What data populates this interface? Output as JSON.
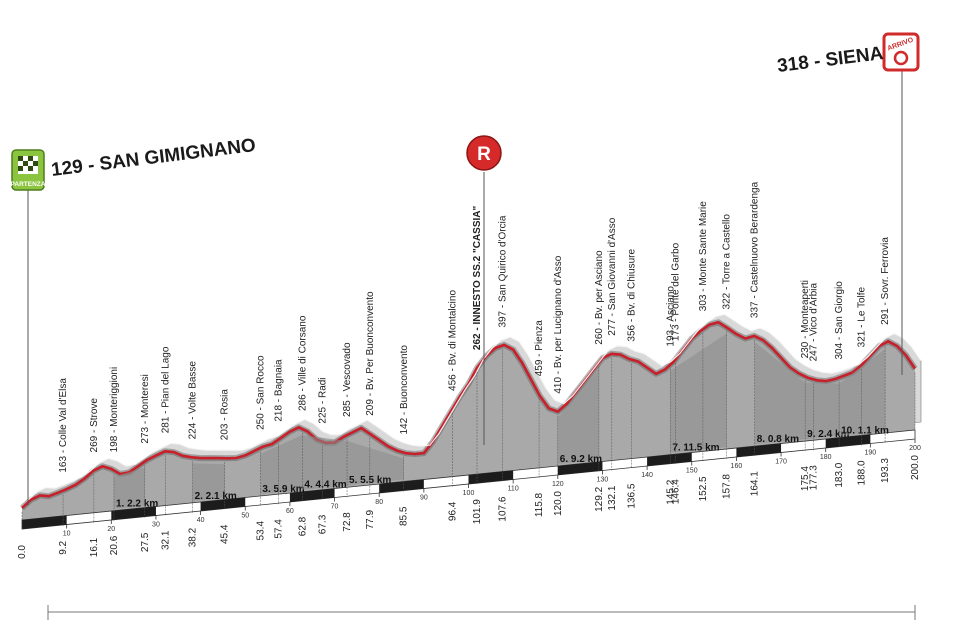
{
  "chart_data": {
    "type": "area",
    "title": "",
    "xlabel": "",
    "ylabel": "",
    "xlim": [
      0,
      200
    ],
    "start": {
      "label": "129 - SAN GIMIGNANO",
      "badge": "PARTENZA"
    },
    "finish": {
      "label": "318 - SIENA",
      "badge": "ARRIVO"
    },
    "refuel_badge": "R",
    "axis_ticks": [
      10,
      20,
      30,
      40,
      50,
      60,
      70,
      80,
      90,
      100,
      110,
      120,
      130,
      140,
      150,
      160,
      170,
      180,
      190,
      200
    ],
    "km_labels": [
      "0.0",
      "9.2",
      "16.1",
      "20.6",
      "27.5",
      "32.1",
      "38.2",
      "45.4",
      "53.4",
      "57.4",
      "62.8",
      "67.3",
      "72.8",
      "77.9",
      "85.5",
      "96.4",
      "101.9",
      "107.6",
      "115.8",
      "120.0",
      "129.2",
      "132.1",
      "136.5",
      "145.2",
      "146.4",
      "152.5",
      "157.8",
      "164.1",
      "175.4",
      "177.3",
      "183.0",
      "188.0",
      "193.3",
      "200.0"
    ],
    "waypoints": [
      {
        "label": "163 - Colle Val d'Elsa",
        "km": 9.2
      },
      {
        "label": "269 - Strove",
        "km": 16.1
      },
      {
        "label": "198 - Monteriggioni",
        "km": 20.6
      },
      {
        "label": "273 - Monteresi",
        "km": 27.5
      },
      {
        "label": "281 - Pian del Lago",
        "km": 32.1
      },
      {
        "label": "224 - Volte Basse",
        "km": 38.2
      },
      {
        "label": "203 - Rosia",
        "km": 45.4
      },
      {
        "label": "250 - San Rocco",
        "km": 53.4
      },
      {
        "label": "218 - Bagnaia",
        "km": 57.4
      },
      {
        "label": "286 - Ville di Corsano",
        "km": 62.8
      },
      {
        "label": "225 - Radi",
        "km": 67.3
      },
      {
        "label": "285 - Vescovado",
        "km": 72.8
      },
      {
        "label": "209 - Bv. Per Buonconvento",
        "km": 77.9
      },
      {
        "label": "142 - Buonconvento",
        "km": 85.5
      },
      {
        "label": "456 - Bv. di Montalcino",
        "km": 96.4
      },
      {
        "label": "262 - INNESTO SS.2 \"CASSIA\"",
        "km": 101.9,
        "bold": true
      },
      {
        "label": "397 - San Quirico d'Orcia",
        "km": 107.6
      },
      {
        "label": "459 - Pienza",
        "km": 115.8
      },
      {
        "label": "410 - Bv. per Lucignano d'Asso",
        "km": 120.0
      },
      {
        "label": "260 - Bv. per Asciano",
        "km": 129.2
      },
      {
        "label": "277 - San Giovanni d'Asso",
        "km": 132.1
      },
      {
        "label": "356 - Bv. di Chiusure",
        "km": 136.5
      },
      {
        "label": "193 - Asciano",
        "km": 145.2
      },
      {
        "label": "173 - Ponte del Garbo",
        "km": 146.4
      },
      {
        "label": "303 - Monte Sante Marie",
        "km": 152.5
      },
      {
        "label": "322 - Torre a Castello",
        "km": 157.8
      },
      {
        "label": "337 - Castelnuovo Berardenga",
        "km": 164.1
      },
      {
        "label": "230 - Monteaperti",
        "km": 175.4
      },
      {
        "label": "247 - Vico d'Arbia",
        "km": 177.3
      },
      {
        "label": "304 - San Giorgio",
        "km": 183.0
      },
      {
        "label": "321 - Le Tolfe",
        "km": 188.0
      },
      {
        "label": "291 - Sovr. Ferrovia",
        "km": 193.3
      }
    ],
    "sectors": [
      {
        "label": "1. 2.2 km",
        "start": 20.6,
        "end": 27.5
      },
      {
        "label": "2. 2.1 km",
        "start": 38.2,
        "end": 45.4
      },
      {
        "label": "3. 5.9 km",
        "start": 53.4,
        "end": 62.8
      },
      {
        "label": "4. 4.4 km",
        "start": 62.8,
        "end": 72.8
      },
      {
        "label": "5. 5.5 km",
        "start": 72.8,
        "end": 85.5
      },
      {
        "label": "6. 9.2 km",
        "start": 120.0,
        "end": 129.2
      },
      {
        "label": "7. 11.5 km",
        "start": 145.2,
        "end": 157.8
      },
      {
        "label": "8. 0.8 km",
        "start": 164.1,
        "end": 175.4
      },
      {
        "label": "9. 2.4 km",
        "start": 175.4,
        "end": 183.0
      },
      {
        "label": "10. 1.1 km",
        "start": 183.0,
        "end": 193.3
      }
    ],
    "profile": {
      "x": [
        0,
        2,
        4,
        6,
        8,
        10,
        12,
        14,
        16,
        18,
        20,
        22,
        24,
        26,
        28,
        30,
        32,
        34,
        36,
        38,
        40,
        42,
        44,
        46,
        48,
        50,
        52,
        54,
        56,
        58,
        60,
        62,
        64,
        66,
        68,
        70,
        72,
        74,
        76,
        78,
        80,
        82,
        84,
        86,
        88,
        90,
        92,
        94,
        96,
        98,
        100,
        102,
        104,
        106,
        108,
        110,
        112,
        114,
        116,
        118,
        120,
        122,
        124,
        126,
        128,
        130,
        132,
        134,
        136,
        138,
        140,
        142,
        144,
        146,
        148,
        150,
        152,
        154,
        156,
        158,
        160,
        162,
        164,
        166,
        168,
        170,
        172,
        174,
        176,
        178,
        180,
        182,
        184,
        186,
        188,
        190,
        192,
        194,
        196,
        198,
        200
      ],
      "y": [
        129,
        150,
        160,
        155,
        162,
        170,
        180,
        195,
        215,
        225,
        215,
        198,
        200,
        215,
        230,
        240,
        250,
        245,
        232,
        225,
        220,
        218,
        215,
        212,
        210,
        215,
        225,
        235,
        240,
        255,
        270,
        280,
        265,
        240,
        228,
        226,
        240,
        250,
        260,
        240,
        220,
        200,
        185,
        175,
        170,
        170,
        200,
        240,
        280,
        320,
        355,
        400,
        430,
        450,
        456,
        440,
        400,
        350,
        300,
        262,
        250,
        270,
        300,
        330,
        360,
        390,
        400,
        395,
        380,
        370,
        350,
        330,
        340,
        360,
        390,
        420,
        440,
        455,
        459,
        440,
        420,
        405,
        410,
        395,
        370,
        340,
        310,
        290,
        275,
        265,
        260,
        263,
        270,
        277,
        295,
        320,
        345,
        356,
        340,
        310,
        270
      ]
    }
  }
}
